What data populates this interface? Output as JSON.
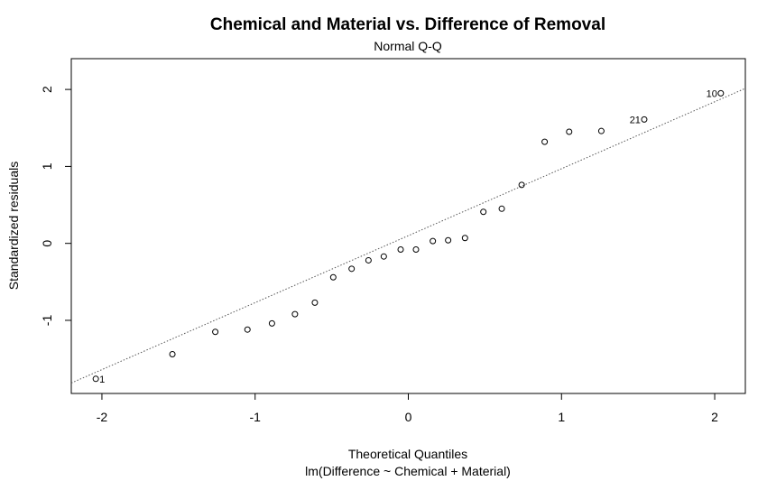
{
  "chart_data": {
    "type": "scatter",
    "title": "Chemical and Material vs. Difference of Removal",
    "subtitle": "Normal Q-Q",
    "xlabel": "Theoretical Quantiles",
    "xlabel2": "lm(Difference ~ Chemical + Material)",
    "ylabel": "Standardized residuals",
    "xlim": [
      -2.2,
      2.2
    ],
    "ylim": [
      -1.95,
      2.4
    ],
    "x_ticks": [
      -2,
      -1,
      0,
      1,
      2
    ],
    "x_tick_labels": [
      "-2",
      "-1",
      "0",
      "1",
      "2"
    ],
    "y_ticks": [
      -1,
      0,
      1,
      2
    ],
    "y_tick_labels": [
      "-1",
      "0",
      "1",
      "2"
    ],
    "grid": false,
    "reference_line": {
      "style": "dotted",
      "color": "#555555",
      "intercept": 0.1,
      "slope": 0.87
    },
    "points": [
      {
        "x": -2.04,
        "y": -1.76,
        "label": "1"
      },
      {
        "x": -1.54,
        "y": -1.44
      },
      {
        "x": -1.26,
        "y": -1.15
      },
      {
        "x": -1.05,
        "y": -1.12
      },
      {
        "x": -0.89,
        "y": -1.04
      },
      {
        "x": -0.74,
        "y": -0.92
      },
      {
        "x": -0.61,
        "y": -0.77
      },
      {
        "x": -0.49,
        "y": -0.44
      },
      {
        "x": -0.37,
        "y": -0.33
      },
      {
        "x": -0.26,
        "y": -0.22
      },
      {
        "x": -0.16,
        "y": -0.17
      },
      {
        "x": -0.05,
        "y": -0.08
      },
      {
        "x": 0.05,
        "y": -0.08
      },
      {
        "x": 0.16,
        "y": 0.03
      },
      {
        "x": 0.26,
        "y": 0.04
      },
      {
        "x": 0.37,
        "y": 0.07
      },
      {
        "x": 0.49,
        "y": 0.41
      },
      {
        "x": 0.61,
        "y": 0.45
      },
      {
        "x": 0.74,
        "y": 0.76
      },
      {
        "x": 0.89,
        "y": 1.32
      },
      {
        "x": 1.05,
        "y": 1.45
      },
      {
        "x": 1.26,
        "y": 1.46
      },
      {
        "x": 1.54,
        "y": 1.61,
        "label": "21"
      },
      {
        "x": 2.04,
        "y": 1.95,
        "label": "10"
      }
    ]
  }
}
